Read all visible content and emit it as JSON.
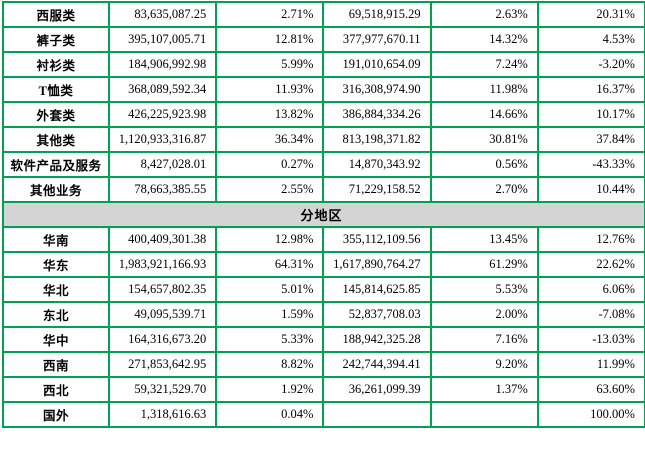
{
  "colors": {
    "border_green": "#00a152",
    "header_bg": "#d4d4d4",
    "text": "#000000",
    "page_bg": "#ffffff"
  },
  "table": {
    "section_label": "分地区",
    "column_semantics": [
      "category",
      "amount_current_period",
      "ratio_current_period",
      "amount_prior_period",
      "ratio_prior_period",
      "yoy_change"
    ],
    "rows": [
      {
        "type": "data",
        "cells": [
          "西服类",
          "83,635,087.25",
          "2.71%",
          "69,518,915.29",
          "2.63%",
          "20.31%"
        ]
      },
      {
        "type": "data",
        "cells": [
          "裤子类",
          "395,107,005.71",
          "12.81%",
          "377,977,670.11",
          "14.32%",
          "4.53%"
        ]
      },
      {
        "type": "data",
        "cells": [
          "衬衫类",
          "184,906,992.98",
          "5.99%",
          "191,010,654.09",
          "7.24%",
          "-3.20%"
        ]
      },
      {
        "type": "data",
        "cells": [
          "T恤类",
          "368,089,592.34",
          "11.93%",
          "316,308,974.90",
          "11.98%",
          "16.37%"
        ]
      },
      {
        "type": "data",
        "cells": [
          "外套类",
          "426,225,923.98",
          "13.82%",
          "386,884,334.26",
          "14.66%",
          "10.17%"
        ]
      },
      {
        "type": "data",
        "cells": [
          "其他类",
          "1,120,933,316.87",
          "36.34%",
          "813,198,371.82",
          "30.81%",
          "37.84%"
        ]
      },
      {
        "type": "data",
        "cells": [
          "软件产品及服务",
          "8,427,028.01",
          "0.27%",
          "14,870,343.92",
          "0.56%",
          "-43.33%"
        ]
      },
      {
        "type": "data",
        "cells": [
          "其他业务",
          "78,663,385.55",
          "2.55%",
          "71,229,158.52",
          "2.70%",
          "10.44%"
        ]
      },
      {
        "type": "section",
        "label": "分地区"
      },
      {
        "type": "data",
        "cells": [
          "华南",
          "400,409,301.38",
          "12.98%",
          "355,112,109.56",
          "13.45%",
          "12.76%"
        ]
      },
      {
        "type": "data",
        "cells": [
          "华东",
          "1,983,921,166.93",
          "64.31%",
          "1,617,890,764.27",
          "61.29%",
          "22.62%"
        ]
      },
      {
        "type": "data",
        "cells": [
          "华北",
          "154,657,802.35",
          "5.01%",
          "145,814,625.85",
          "5.53%",
          "6.06%"
        ]
      },
      {
        "type": "data",
        "cells": [
          "东北",
          "49,095,539.71",
          "1.59%",
          "52,837,708.03",
          "2.00%",
          "-7.08%"
        ]
      },
      {
        "type": "data",
        "cells": [
          "华中",
          "164,316,673.20",
          "5.33%",
          "188,942,325.28",
          "7.16%",
          "-13.03%"
        ]
      },
      {
        "type": "data",
        "cells": [
          "西南",
          "271,853,642.95",
          "8.82%",
          "242,744,394.41",
          "9.20%",
          "11.99%"
        ]
      },
      {
        "type": "data",
        "cells": [
          "西北",
          "59,321,529.70",
          "1.92%",
          "36,261,099.39",
          "1.37%",
          "63.60%"
        ]
      },
      {
        "type": "data",
        "cells": [
          "国外",
          "1,318,616.63",
          "0.04%",
          "",
          "",
          "100.00%"
        ]
      }
    ]
  }
}
